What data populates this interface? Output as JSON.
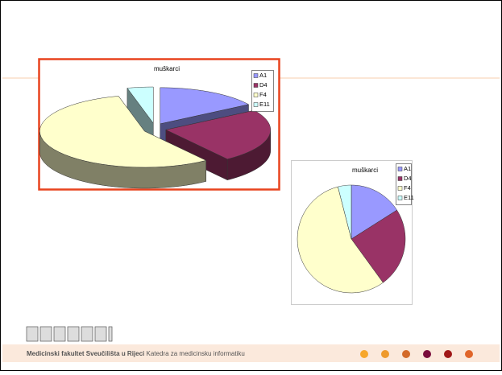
{
  "chart_data": [
    {
      "type": "pie",
      "title": "muškarci",
      "three_d": true,
      "exploded": true,
      "legend": "right",
      "categories": [
        "A1",
        "D4",
        "F4",
        "E11"
      ],
      "values": [
        16,
        24,
        56,
        4
      ],
      "colors": [
        "#9999ff",
        "#993366",
        "#ffffcc",
        "#ccffff"
      ]
    },
    {
      "type": "pie",
      "title": "muškarci",
      "three_d": false,
      "exploded": false,
      "legend": "right",
      "categories": [
        "A1",
        "D4",
        "F4",
        "E11"
      ],
      "values": [
        16,
        24,
        56,
        4
      ],
      "colors": [
        "#9999ff",
        "#993366",
        "#ffffcc",
        "#ccffff"
      ]
    }
  ],
  "footer": {
    "bold": "Medicinski fakultet Sveučilišta u Rijeci",
    "text": "Katedra za medicinsku informatiku"
  }
}
